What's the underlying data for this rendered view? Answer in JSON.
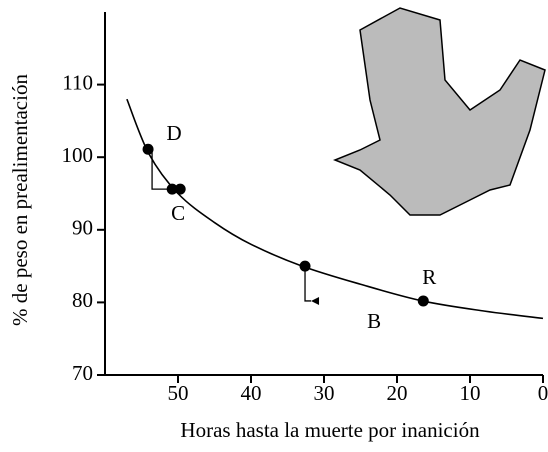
{
  "chart_data": {
    "type": "line",
    "x_label": "Horas hasta la muerte por inanición",
    "y_label": "% de peso en prealimentación",
    "xlim": [
      60,
      0
    ],
    "xticks": [
      50,
      40,
      30,
      20,
      10,
      0
    ],
    "ylim": [
      70,
      120
    ],
    "yticks": [
      70,
      80,
      90,
      100,
      110
    ],
    "color": "#000000",
    "series": [
      {
        "x": [
          57,
          54,
          50,
          45,
          40,
          33,
          25,
          16.5,
          8,
          0
        ],
        "values": [
          108,
          100.5,
          95,
          91,
          88,
          85,
          82.5,
          80.2,
          78.8,
          77.8
        ]
      }
    ],
    "points": {
      "x": [
        54.1,
        50.8,
        49.7,
        32.6,
        16.4
      ],
      "values": [
        101.1,
        95.6,
        95.6,
        85,
        80.2
      ]
    },
    "annotations": [
      "D",
      "C",
      "B",
      "R"
    ]
  }
}
